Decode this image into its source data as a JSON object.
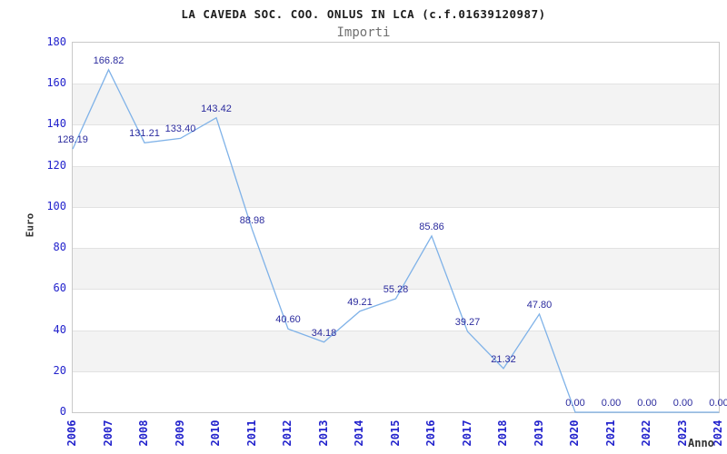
{
  "header": {
    "title": "LA CAVEDA SOC. COO. ONLUS IN LCA (c.f.01639120987)",
    "subtitle": "Importi"
  },
  "chart_data": {
    "type": "line",
    "title": "LA CAVEDA SOC. COO. ONLUS IN LCA (c.f.01639120987)",
    "subtitle": "Importi",
    "xlabel": "Anno",
    "ylabel": "Euro",
    "categories": [
      "2006",
      "2007",
      "2008",
      "2009",
      "2010",
      "2011",
      "2012",
      "2013",
      "2014",
      "2015",
      "2016",
      "2017",
      "2018",
      "2019",
      "2020",
      "2021",
      "2022",
      "2023",
      "2024"
    ],
    "values": [
      128.19,
      166.82,
      131.21,
      133.4,
      143.42,
      88.98,
      40.6,
      34.18,
      49.21,
      55.28,
      85.86,
      39.27,
      21.32,
      47.8,
      0.0,
      0.0,
      0.0,
      0.0,
      0.0
    ],
    "point_labels": [
      "128.19",
      "166.82",
      "131.21",
      "133.40",
      "143.42",
      "88.98",
      "40.60",
      "34.18",
      "49.21",
      "55.28",
      "85.86",
      "39.27",
      "21.32",
      "47.80",
      "0.00",
      "0.00",
      "0.00",
      "0.00",
      "0.00"
    ],
    "ylim": [
      0,
      180
    ],
    "ytick_step": 20,
    "yticks": [
      "0",
      "20",
      "40",
      "60",
      "80",
      "100",
      "120",
      "140",
      "160",
      "180"
    ],
    "grid": "alternating-horizontal-bands",
    "legend": "none",
    "colors": {
      "line": "#7fb2e8",
      "data_label": "#2b2b9e",
      "tick_label": "#2222cc",
      "band_gray": "#f3f3f3",
      "gridline": "#e2e2e2",
      "plot_border": "#c9c9c9",
      "title": "#1c1c1c",
      "subtitle": "#707070",
      "axis_title": "#333333"
    }
  }
}
